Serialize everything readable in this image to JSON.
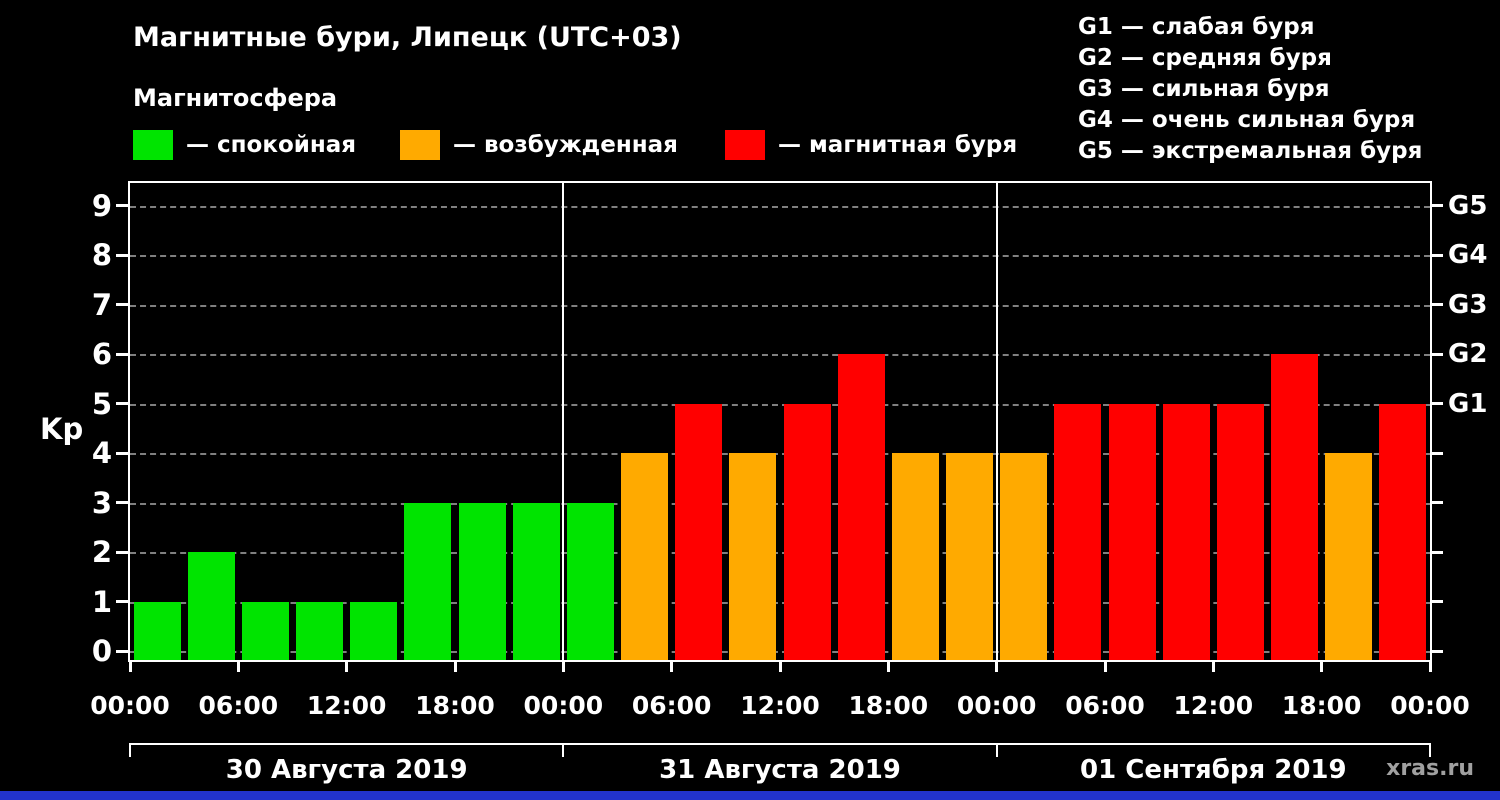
{
  "header": {
    "title": "Магнитные бури, Липецк (UTC+03)",
    "subtitle": "Магнитосфера",
    "legend": [
      {
        "state": "quiet",
        "label": "— спокойная"
      },
      {
        "state": "active",
        "label": "— возбужденная"
      },
      {
        "state": "storm",
        "label": "— магнитная буря"
      }
    ],
    "g_scale": [
      "G1 — слабая буря",
      "G2 — средняя буря",
      "G3 — сильная буря",
      "G4 — очень сильная буря",
      "G5 — экстремальная буря"
    ]
  },
  "palette": {
    "quiet": "#00e400",
    "active": "#ffaa00",
    "storm": "#ff0000",
    "background": "#000000",
    "grid": "#808080",
    "axis": "#ffffff",
    "watermark": "#a0a0a0",
    "footer_bar": "#2233cc"
  },
  "watermark": "xras.ru",
  "chart_data": {
    "type": "bar",
    "title": "Магнитные бури, Липецк (UTC+03)",
    "ylabel": "Kp",
    "xlabel": "",
    "ylim": [
      0,
      9
    ],
    "grid": "dashed-horizontal",
    "yticks": [
      0,
      1,
      2,
      3,
      4,
      5,
      6,
      7,
      8,
      9
    ],
    "right_axis_labels": [
      {
        "value": 5,
        "label": "G1"
      },
      {
        "value": 6,
        "label": "G2"
      },
      {
        "value": 7,
        "label": "G3"
      },
      {
        "value": 8,
        "label": "G4"
      },
      {
        "value": 9,
        "label": "G5"
      }
    ],
    "hours_total": 72,
    "bar_interval_hours": 3,
    "day_boundaries_hours": [
      24,
      48
    ],
    "x_ticks": [
      {
        "hour": 0,
        "label": "00:00"
      },
      {
        "hour": 6,
        "label": "06:00"
      },
      {
        "hour": 12,
        "label": "12:00"
      },
      {
        "hour": 18,
        "label": "18:00"
      },
      {
        "hour": 24,
        "label": "00:00"
      },
      {
        "hour": 30,
        "label": "06:00"
      },
      {
        "hour": 36,
        "label": "12:00"
      },
      {
        "hour": 42,
        "label": "18:00"
      },
      {
        "hour": 48,
        "label": "00:00"
      },
      {
        "hour": 54,
        "label": "06:00"
      },
      {
        "hour": 60,
        "label": "12:00"
      },
      {
        "hour": 66,
        "label": "18:00"
      },
      {
        "hour": 72,
        "label": "00:00"
      }
    ],
    "days": [
      {
        "label": "30 Августа 2019",
        "values": [
          1,
          2,
          1,
          1,
          1,
          3,
          3,
          3
        ],
        "states": [
          "quiet",
          "quiet",
          "quiet",
          "quiet",
          "quiet",
          "quiet",
          "quiet",
          "quiet"
        ]
      },
      {
        "label": "31 Августа 2019",
        "values": [
          3,
          4,
          5,
          4,
          5,
          6,
          4,
          4
        ],
        "states": [
          "quiet",
          "active",
          "storm",
          "active",
          "storm",
          "storm",
          "active",
          "active"
        ]
      },
      {
        "label": "01 Сентября 2019",
        "values": [
          4,
          5,
          5,
          5,
          5,
          6,
          4,
          5
        ],
        "states": [
          "active",
          "storm",
          "storm",
          "storm",
          "storm",
          "storm",
          "active",
          "storm"
        ]
      }
    ]
  }
}
